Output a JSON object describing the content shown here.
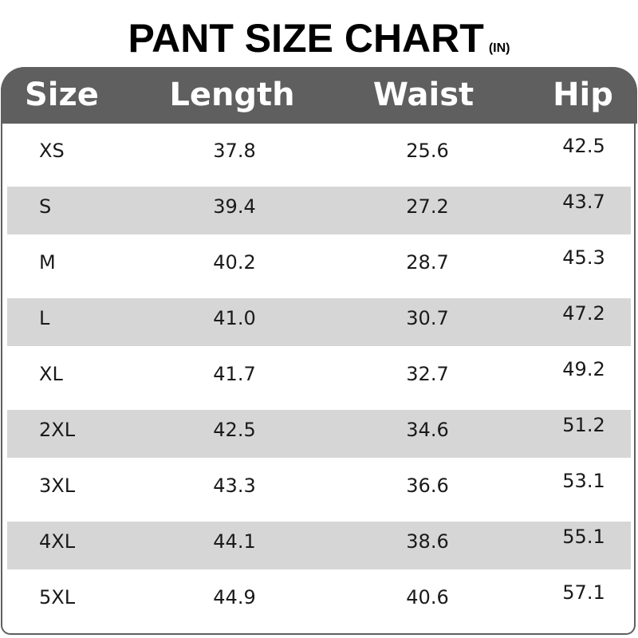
{
  "title": "PANT SIZE CHART",
  "unit": "(IN)",
  "columns": [
    "Size",
    "Length",
    "Waist",
    "Hip"
  ],
  "rows": [
    [
      "XS",
      "37.8",
      "25.6",
      "42.5"
    ],
    [
      "S",
      "39.4",
      "27.2",
      "43.7"
    ],
    [
      "M",
      "40.2",
      "28.7",
      "45.3"
    ],
    [
      "L",
      "41.0",
      "30.7",
      "47.2"
    ],
    [
      "XL",
      "41.7",
      "32.7",
      "49.2"
    ],
    [
      "2XL",
      "42.5",
      "34.6",
      "51.2"
    ],
    [
      "3XL",
      "43.3",
      "36.6",
      "53.1"
    ],
    [
      "4XL",
      "44.1",
      "38.6",
      "55.1"
    ],
    [
      "5XL",
      "44.9",
      "40.6",
      "57.1"
    ]
  ],
  "colors": {
    "header_bg": "#5f5f5f",
    "stripe": "#d6d6d6"
  }
}
